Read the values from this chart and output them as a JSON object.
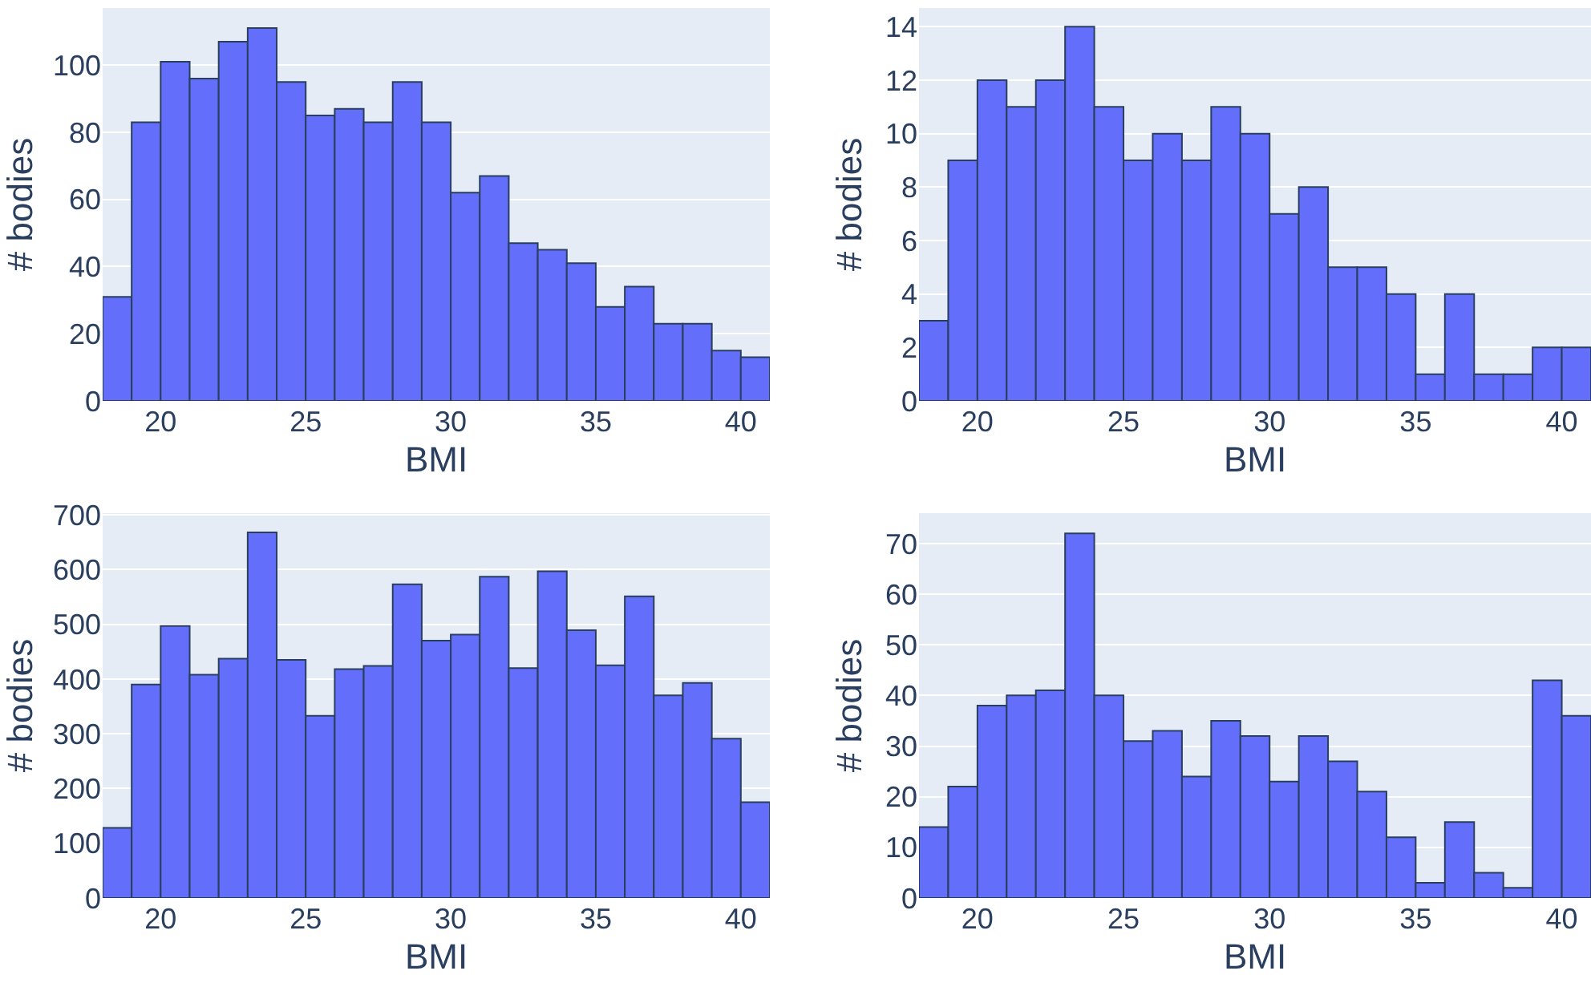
{
  "chart_data": [
    {
      "type": "histogram",
      "xlabel": "BMI",
      "ylabel": "# bodies",
      "color": "#636efa",
      "grid": "y",
      "bins": [
        18,
        19,
        20,
        21,
        22,
        23,
        24,
        25,
        26,
        27,
        28,
        29,
        30,
        31,
        32,
        33,
        34,
        35,
        36,
        37,
        38,
        39,
        40,
        41
      ],
      "values": [
        31,
        83,
        101,
        96,
        107,
        111,
        95,
        85,
        87,
        83,
        95,
        83,
        62,
        67,
        47,
        45,
        41,
        28,
        34,
        23,
        23,
        15,
        13
      ],
      "xlim": [
        18,
        41
      ],
      "xticks": [
        20,
        25,
        30,
        35,
        40
      ],
      "ylim": [
        0,
        117
      ],
      "yticks": [
        0,
        20,
        40,
        60,
        80,
        100
      ]
    },
    {
      "type": "histogram",
      "xlabel": "BMI",
      "ylabel": "# bodies",
      "color": "#636efa",
      "grid": "y",
      "bins": [
        18,
        19,
        20,
        21,
        22,
        23,
        24,
        25,
        26,
        27,
        28,
        29,
        30,
        31,
        32,
        33,
        34,
        35,
        36,
        37,
        38,
        39,
        40,
        41
      ],
      "values": [
        3,
        9,
        12,
        11,
        12,
        14,
        11,
        9,
        10,
        9,
        11,
        10,
        7,
        8,
        5,
        5,
        4,
        1,
        4,
        1,
        1,
        2,
        2
      ],
      "xlim": [
        18,
        41
      ],
      "xticks": [
        20,
        25,
        30,
        35,
        40
      ],
      "ylim": [
        0,
        14.7
      ],
      "yticks": [
        0,
        2,
        4,
        6,
        8,
        10,
        12,
        14
      ]
    },
    {
      "type": "histogram",
      "xlabel": "BMI",
      "ylabel": "# bodies",
      "color": "#636efa",
      "grid": "y",
      "bins": [
        18,
        19,
        20,
        21,
        22,
        23,
        24,
        25,
        26,
        27,
        28,
        29,
        30,
        31,
        32,
        33,
        34,
        35,
        36,
        37,
        38,
        39,
        40,
        41
      ],
      "values": [
        128,
        390,
        497,
        408,
        437,
        668,
        435,
        333,
        418,
        424,
        573,
        470,
        481,
        587,
        420,
        597,
        489,
        425,
        551,
        370,
        393,
        291,
        175
      ],
      "xlim": [
        18,
        41
      ],
      "xticks": [
        20,
        25,
        30,
        35,
        40
      ],
      "ylim": [
        0,
        703
      ],
      "yticks": [
        0,
        100,
        200,
        300,
        400,
        500,
        600,
        700
      ]
    },
    {
      "type": "histogram",
      "xlabel": "BMI",
      "ylabel": "# bodies",
      "color": "#636efa",
      "grid": "y",
      "bins": [
        18,
        19,
        20,
        21,
        22,
        23,
        24,
        25,
        26,
        27,
        28,
        29,
        30,
        31,
        32,
        33,
        34,
        35,
        36,
        37,
        38,
        39,
        40,
        41
      ],
      "values": [
        14,
        22,
        38,
        40,
        41,
        72,
        40,
        31,
        33,
        24,
        35,
        32,
        23,
        32,
        27,
        21,
        12,
        3,
        15,
        5,
        2,
        43,
        36
      ],
      "xlim": [
        18,
        41
      ],
      "xticks": [
        20,
        25,
        30,
        35,
        40
      ],
      "ylim": [
        0,
        76
      ],
      "yticks": [
        0,
        10,
        20,
        30,
        40,
        50,
        60,
        70
      ]
    }
  ]
}
